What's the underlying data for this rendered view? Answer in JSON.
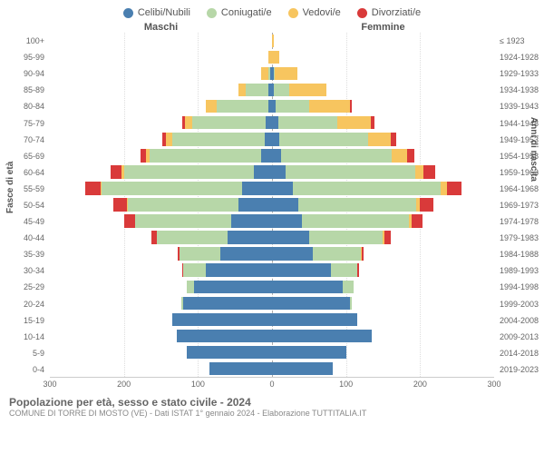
{
  "legend": [
    {
      "label": "Celibi/Nubili",
      "color": "#4a7fb0"
    },
    {
      "label": "Coniugati/e",
      "color": "#b7d7a8"
    },
    {
      "label": "Vedovi/e",
      "color": "#f7c55f"
    },
    {
      "label": "Divorziati/e",
      "color": "#d93a3a"
    }
  ],
  "headers": {
    "male": "Maschi",
    "female": "Femmine"
  },
  "axis_titles": {
    "left": "Fasce di età",
    "right": "Anni di nascita"
  },
  "footer": {
    "title": "Popolazione per età, sesso e stato civile - 2024",
    "sub": "COMUNE DI TORRE DI MOSTO (VE) - Dati ISTAT 1° gennaio 2024 - Elaborazione TUTTITALIA.IT"
  },
  "chart": {
    "type": "population-pyramid",
    "x_max": 300,
    "x_ticks": [
      300,
      200,
      100,
      0,
      100,
      200,
      300
    ],
    "grid_color": "#dddddd",
    "background": "#ffffff",
    "center_line": "#aaaaaa",
    "font_size_ticks": 9,
    "rows": [
      {
        "age": "100+",
        "birth": "≤ 1923",
        "m": [
          0,
          0,
          0,
          0
        ],
        "f": [
          0,
          0,
          2,
          0
        ]
      },
      {
        "age": "95-99",
        "birth": "1924-1928",
        "m": [
          0,
          0,
          5,
          0
        ],
        "f": [
          0,
          0,
          10,
          0
        ]
      },
      {
        "age": "90-94",
        "birth": "1929-1933",
        "m": [
          2,
          3,
          10,
          0
        ],
        "f": [
          2,
          2,
          30,
          0
        ]
      },
      {
        "age": "85-89",
        "birth": "1934-1938",
        "m": [
          5,
          30,
          10,
          0
        ],
        "f": [
          3,
          20,
          50,
          0
        ]
      },
      {
        "age": "80-84",
        "birth": "1939-1943",
        "m": [
          5,
          70,
          15,
          0
        ],
        "f": [
          5,
          45,
          55,
          3
        ]
      },
      {
        "age": "75-79",
        "birth": "1944-1948",
        "m": [
          8,
          100,
          10,
          3
        ],
        "f": [
          8,
          80,
          45,
          5
        ]
      },
      {
        "age": "70-74",
        "birth": "1949-1953",
        "m": [
          10,
          125,
          8,
          5
        ],
        "f": [
          10,
          120,
          30,
          8
        ]
      },
      {
        "age": "65-69",
        "birth": "1954-1958",
        "m": [
          15,
          150,
          5,
          8
        ],
        "f": [
          12,
          150,
          20,
          10
        ]
      },
      {
        "age": "60-64",
        "birth": "1959-1963",
        "m": [
          25,
          175,
          3,
          15
        ],
        "f": [
          18,
          175,
          12,
          15
        ]
      },
      {
        "age": "55-59",
        "birth": "1964-1968",
        "m": [
          40,
          190,
          2,
          20
        ],
        "f": [
          28,
          200,
          8,
          20
        ]
      },
      {
        "age": "50-54",
        "birth": "1969-1973",
        "m": [
          45,
          150,
          1,
          18
        ],
        "f": [
          35,
          160,
          5,
          18
        ]
      },
      {
        "age": "45-49",
        "birth": "1974-1978",
        "m": [
          55,
          130,
          0,
          15
        ],
        "f": [
          40,
          145,
          3,
          15
        ]
      },
      {
        "age": "40-44",
        "birth": "1979-1983",
        "m": [
          60,
          95,
          0,
          8
        ],
        "f": [
          50,
          100,
          2,
          8
        ]
      },
      {
        "age": "35-39",
        "birth": "1984-1988",
        "m": [
          70,
          55,
          0,
          3
        ],
        "f": [
          55,
          65,
          1,
          3
        ]
      },
      {
        "age": "30-34",
        "birth": "1989-1993",
        "m": [
          90,
          30,
          0,
          1
        ],
        "f": [
          80,
          35,
          0,
          2
        ]
      },
      {
        "age": "25-29",
        "birth": "1994-1998",
        "m": [
          105,
          10,
          0,
          0
        ],
        "f": [
          95,
          15,
          0,
          0
        ]
      },
      {
        "age": "20-24",
        "birth": "1999-2003",
        "m": [
          120,
          2,
          0,
          0
        ],
        "f": [
          105,
          3,
          0,
          0
        ]
      },
      {
        "age": "15-19",
        "birth": "2004-2008",
        "m": [
          135,
          0,
          0,
          0
        ],
        "f": [
          115,
          0,
          0,
          0
        ]
      },
      {
        "age": "10-14",
        "birth": "2009-2013",
        "m": [
          128,
          0,
          0,
          0
        ],
        "f": [
          135,
          0,
          0,
          0
        ]
      },
      {
        "age": "5-9",
        "birth": "2014-2018",
        "m": [
          115,
          0,
          0,
          0
        ],
        "f": [
          100,
          0,
          0,
          0
        ]
      },
      {
        "age": "0-4",
        "birth": "2019-2023",
        "m": [
          85,
          0,
          0,
          0
        ],
        "f": [
          82,
          0,
          0,
          0
        ]
      }
    ]
  }
}
